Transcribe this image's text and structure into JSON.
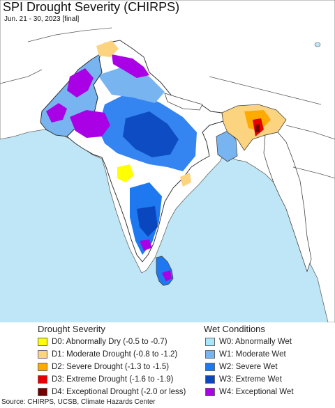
{
  "map": {
    "title": "SPI Drought Severity (CHIRPS)",
    "subtitle": "Jun. 21 - 30, 2023 [final]",
    "colors": {
      "ocean": "#bfe6f6",
      "land": "#ffffff",
      "border": "#444444",
      "state_border": "#8a8a8a"
    }
  },
  "legend": {
    "drought_heading": "Drought Severity",
    "wet_heading": "Wet Conditions",
    "drought_items": [
      {
        "code": "D0",
        "label": "D0: Abnormally Dry (-0.5 to -0.7)",
        "color": "#ffff00"
      },
      {
        "code": "D1",
        "label": "D1: Moderate Drought (-0.8 to -1.2)",
        "color": "#fcd37f"
      },
      {
        "code": "D2",
        "label": "D2: Severe Drought (-1.3 to -1.5)",
        "color": "#ffaa00"
      },
      {
        "code": "D3",
        "label": "D3: Extreme Drought (-1.6 to -1.9)",
        "color": "#e60000"
      },
      {
        "code": "D4",
        "label": "D4: Exceptional Drought (-2.0 or less)",
        "color": "#730000"
      }
    ],
    "wet_items": [
      {
        "code": "W0",
        "label": "W0: Abnormally Wet",
        "color": "#aae6fa"
      },
      {
        "code": "W1",
        "label": "W1: Moderate Wet",
        "color": "#78b4f0"
      },
      {
        "code": "W2",
        "label": "W2: Severe Wet",
        "color": "#1e78f0"
      },
      {
        "code": "W3",
        "label": "W3: Extreme Wet",
        "color": "#0a46be"
      },
      {
        "code": "W4",
        "label": "W4: Exceptional Wet",
        "color": "#aa00e6"
      }
    ]
  },
  "footer": {
    "source": "Source: CHIRPS, UCSB, Climate Hazards Center"
  }
}
